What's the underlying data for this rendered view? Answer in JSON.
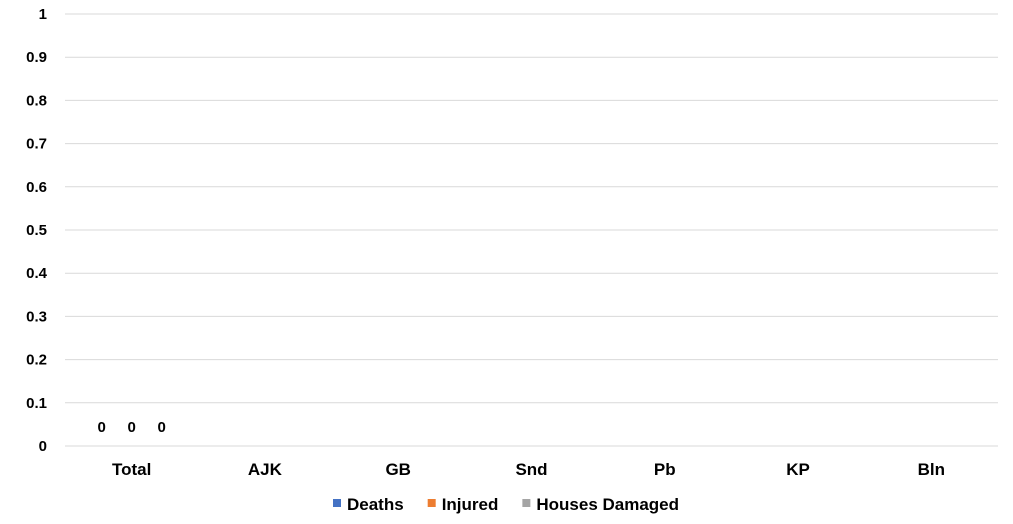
{
  "chart_data": {
    "type": "bar",
    "categories": [
      "Total",
      "AJK",
      "GB",
      "Snd",
      "Pb",
      "KP",
      "Bln"
    ],
    "series": [
      {
        "name": "Deaths",
        "color": "#4472C4",
        "values": [
          0,
          null,
          null,
          null,
          null,
          null,
          null
        ]
      },
      {
        "name": "Injured",
        "color": "#ED7D31",
        "values": [
          0,
          null,
          null,
          null,
          null,
          null,
          null
        ]
      },
      {
        "name": "Houses Damaged",
        "color": "#A5A5A5",
        "values": [
          0,
          null,
          null,
          null,
          null,
          null,
          null
        ]
      }
    ],
    "y_ticks": [
      "0",
      "0.1",
      "0.2",
      "0.3",
      "0.4",
      "0.5",
      "0.6",
      "0.7",
      "0.8",
      "0.9",
      "1"
    ],
    "ylim": [
      0,
      1
    ],
    "grid": true,
    "legend_position": "bottom",
    "data_labels": [
      {
        "category": "Total",
        "series": "Deaths",
        "text": "0"
      },
      {
        "category": "Total",
        "series": "Injured",
        "text": "0"
      },
      {
        "category": "Total",
        "series": "Houses Damaged",
        "text": "0"
      }
    ]
  }
}
